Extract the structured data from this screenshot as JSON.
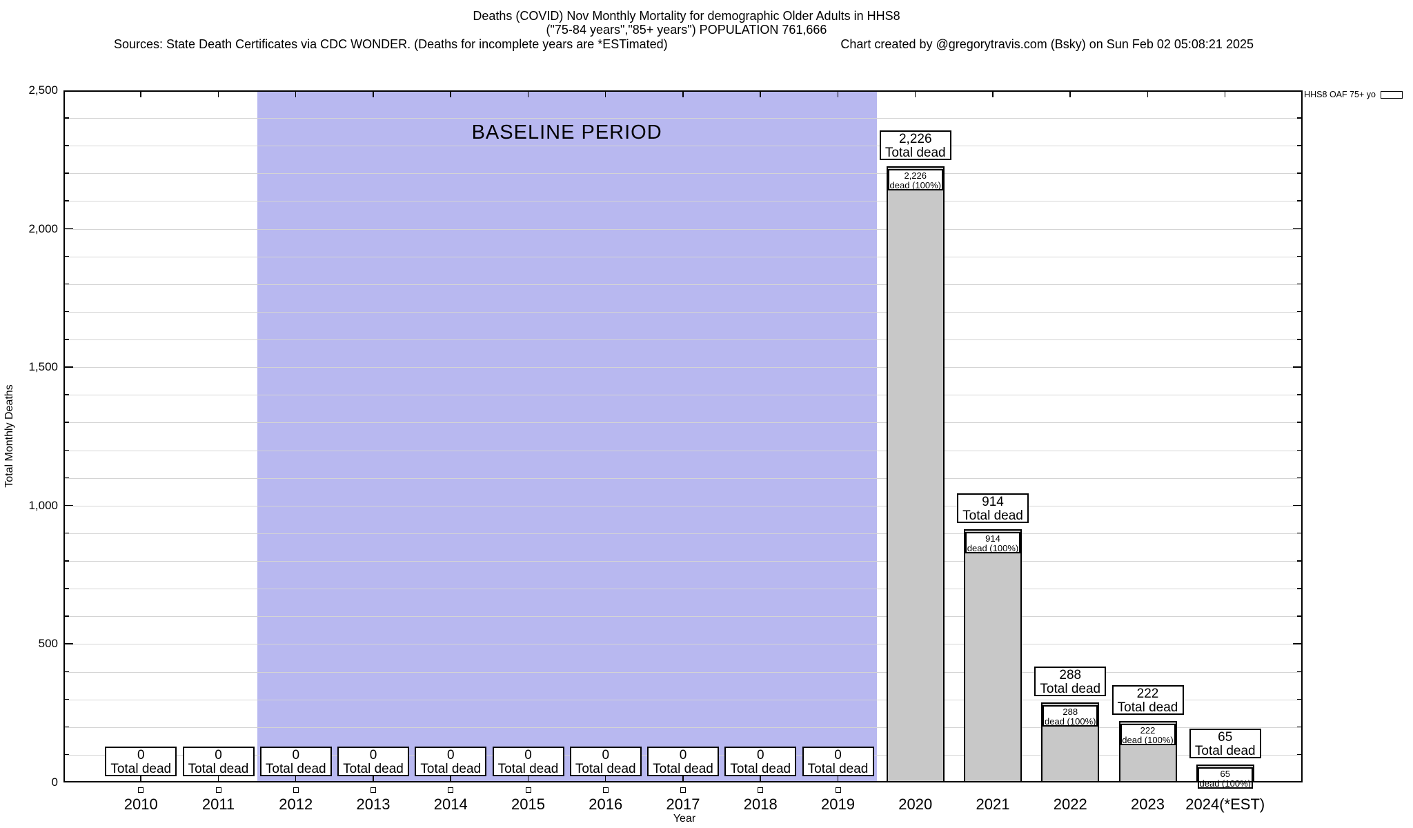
{
  "header": {
    "title_line1": "Deaths (COVID) Nov Monthly Mortality for demographic Older Adults in HHS8",
    "title_line2": "(\"75-84 years\",\"85+ years\") POPULATION 761,666",
    "sources": "Sources: State Death Certificates via CDC WONDER. (Deaths for incomplete years are *ESTimated)",
    "credit": "Chart created by @gregorytravis.com (Bsky) on Sun Feb 02 05:08:21 2025"
  },
  "chart_data": {
    "type": "bar",
    "title": "Deaths (COVID) Nov Monthly Mortality for demographic Older Adults in HHS8",
    "subtitle": "(\"75-84 years\",\"85+ years\") POPULATION 761,666",
    "xlabel": "Year",
    "ylabel": "Total Monthly Deaths",
    "ylim": [
      0,
      2500
    ],
    "ytick_interval": 500,
    "minor_grid_interval": 100,
    "ytick_labels": [
      "0",
      "500",
      "1,000",
      "1,500",
      "2,000",
      "2,500"
    ],
    "grid": true,
    "categories": [
      "2010",
      "2011",
      "2012",
      "2013",
      "2014",
      "2015",
      "2016",
      "2017",
      "2018",
      "2019",
      "2020",
      "2021",
      "2022",
      "2023",
      "2024(*EST)"
    ],
    "values": [
      0,
      0,
      0,
      0,
      0,
      0,
      0,
      0,
      0,
      0,
      2226,
      914,
      288,
      222,
      65
    ],
    "value_labels": [
      "0",
      "0",
      "0",
      "0",
      "0",
      "0",
      "0",
      "0",
      "0",
      "0",
      "2,226",
      "914",
      "288",
      "222",
      "65"
    ],
    "total_label": "Total dead",
    "pct_label": "dead (100%)",
    "marker_categories": [
      "2010",
      "2011",
      "2012",
      "2013",
      "2014",
      "2015",
      "2016",
      "2017",
      "2018",
      "2019"
    ],
    "baseline_band": {
      "label": "BASELINE PERIOD",
      "start": "2012",
      "end": "2019",
      "color": "#b8b8f0"
    },
    "legend": [
      {
        "label": "HHS8 OAF 75+ yo",
        "swatch_color": "#c8c8c8"
      }
    ],
    "legend_position": "top-right-outside",
    "bar_color": "#c8c8c8"
  }
}
